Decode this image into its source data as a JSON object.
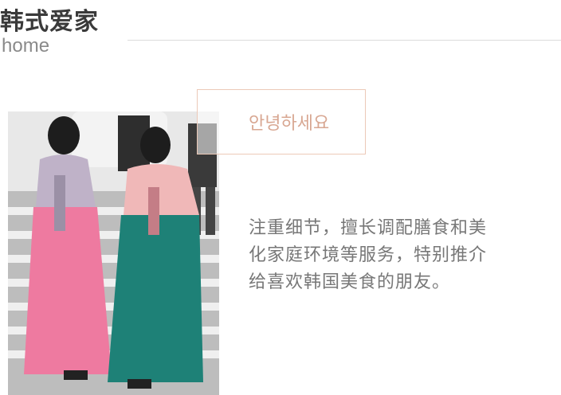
{
  "header": {
    "title": "韩式爱家",
    "subtitle": "home"
  },
  "hero": {
    "image": "two-women-in-hanbok-photo",
    "greeting": "안녕하세요",
    "description_lines": [
      "注重细节，擅长调配膳食和美",
      "化家庭环境等服务，特别推介",
      "给喜欢韩国美食的朋友。"
    ]
  },
  "colors": {
    "accent": "#ecc9b8",
    "greeting_text": "#d8a792",
    "body_text": "#777777"
  }
}
